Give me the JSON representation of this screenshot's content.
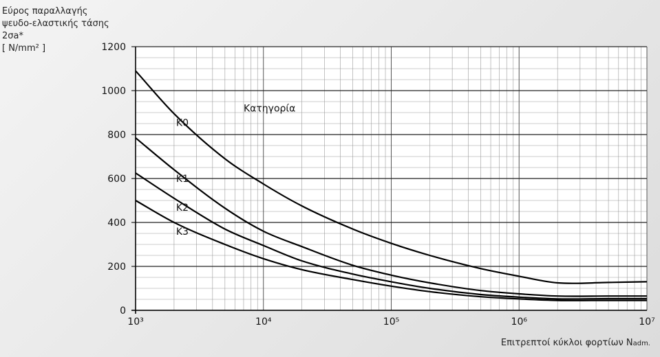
{
  "chart_data": {
    "type": "line",
    "ylabel_lines": [
      "Εύρος παραλλαγής",
      "ψευδο-ελαστικής τάσης",
      "2σa*",
      "[ N/mm² ]"
    ],
    "xlabel": "Επιτρεπτοί κύκλοι φορτίων N",
    "xlabel_sub": "adm.",
    "x_scale": "log",
    "xlim": [
      1000,
      10000000
    ],
    "ylim": [
      0,
      1200
    ],
    "x_tick_labels": [
      "10³",
      "10⁴",
      "10⁵",
      "10⁶",
      "10⁷"
    ],
    "x_tick_values": [
      1000,
      10000,
      100000,
      1000000,
      10000000
    ],
    "y_ticks": [
      0,
      200,
      400,
      600,
      800,
      1000,
      1200
    ],
    "annotation": "Κατηγορία",
    "series": [
      {
        "name": "K0",
        "x": [
          1000,
          2000,
          5000,
          10000,
          20000,
          50000,
          100000,
          200000,
          500000,
          1000000,
          2000000,
          5000000,
          10000000
        ],
        "y": [
          1090,
          895,
          690,
          575,
          475,
          370,
          305,
          250,
          190,
          155,
          125,
          127,
          130
        ]
      },
      {
        "name": "K1",
        "x": [
          1000,
          2000,
          5000,
          10000,
          20000,
          50000,
          100000,
          200000,
          500000,
          1000000,
          2000000,
          5000000,
          10000000
        ],
        "y": [
          785,
          640,
          465,
          360,
          290,
          205,
          160,
          125,
          90,
          75,
          65,
          65,
          65
        ]
      },
      {
        "name": "K2",
        "x": [
          1000,
          2000,
          5000,
          10000,
          20000,
          50000,
          100000,
          200000,
          500000,
          1000000,
          2000000,
          5000000,
          10000000
        ],
        "y": [
          625,
          510,
          370,
          295,
          225,
          165,
          130,
          100,
          72,
          60,
          52,
          53,
          53
        ]
      },
      {
        "name": "K3",
        "x": [
          1000,
          2000,
          5000,
          10000,
          20000,
          50000,
          100000,
          200000,
          500000,
          1000000,
          2000000,
          5000000,
          10000000
        ],
        "y": [
          500,
          400,
          300,
          235,
          185,
          140,
          110,
          85,
          62,
          52,
          45,
          45,
          45
        ]
      }
    ]
  }
}
